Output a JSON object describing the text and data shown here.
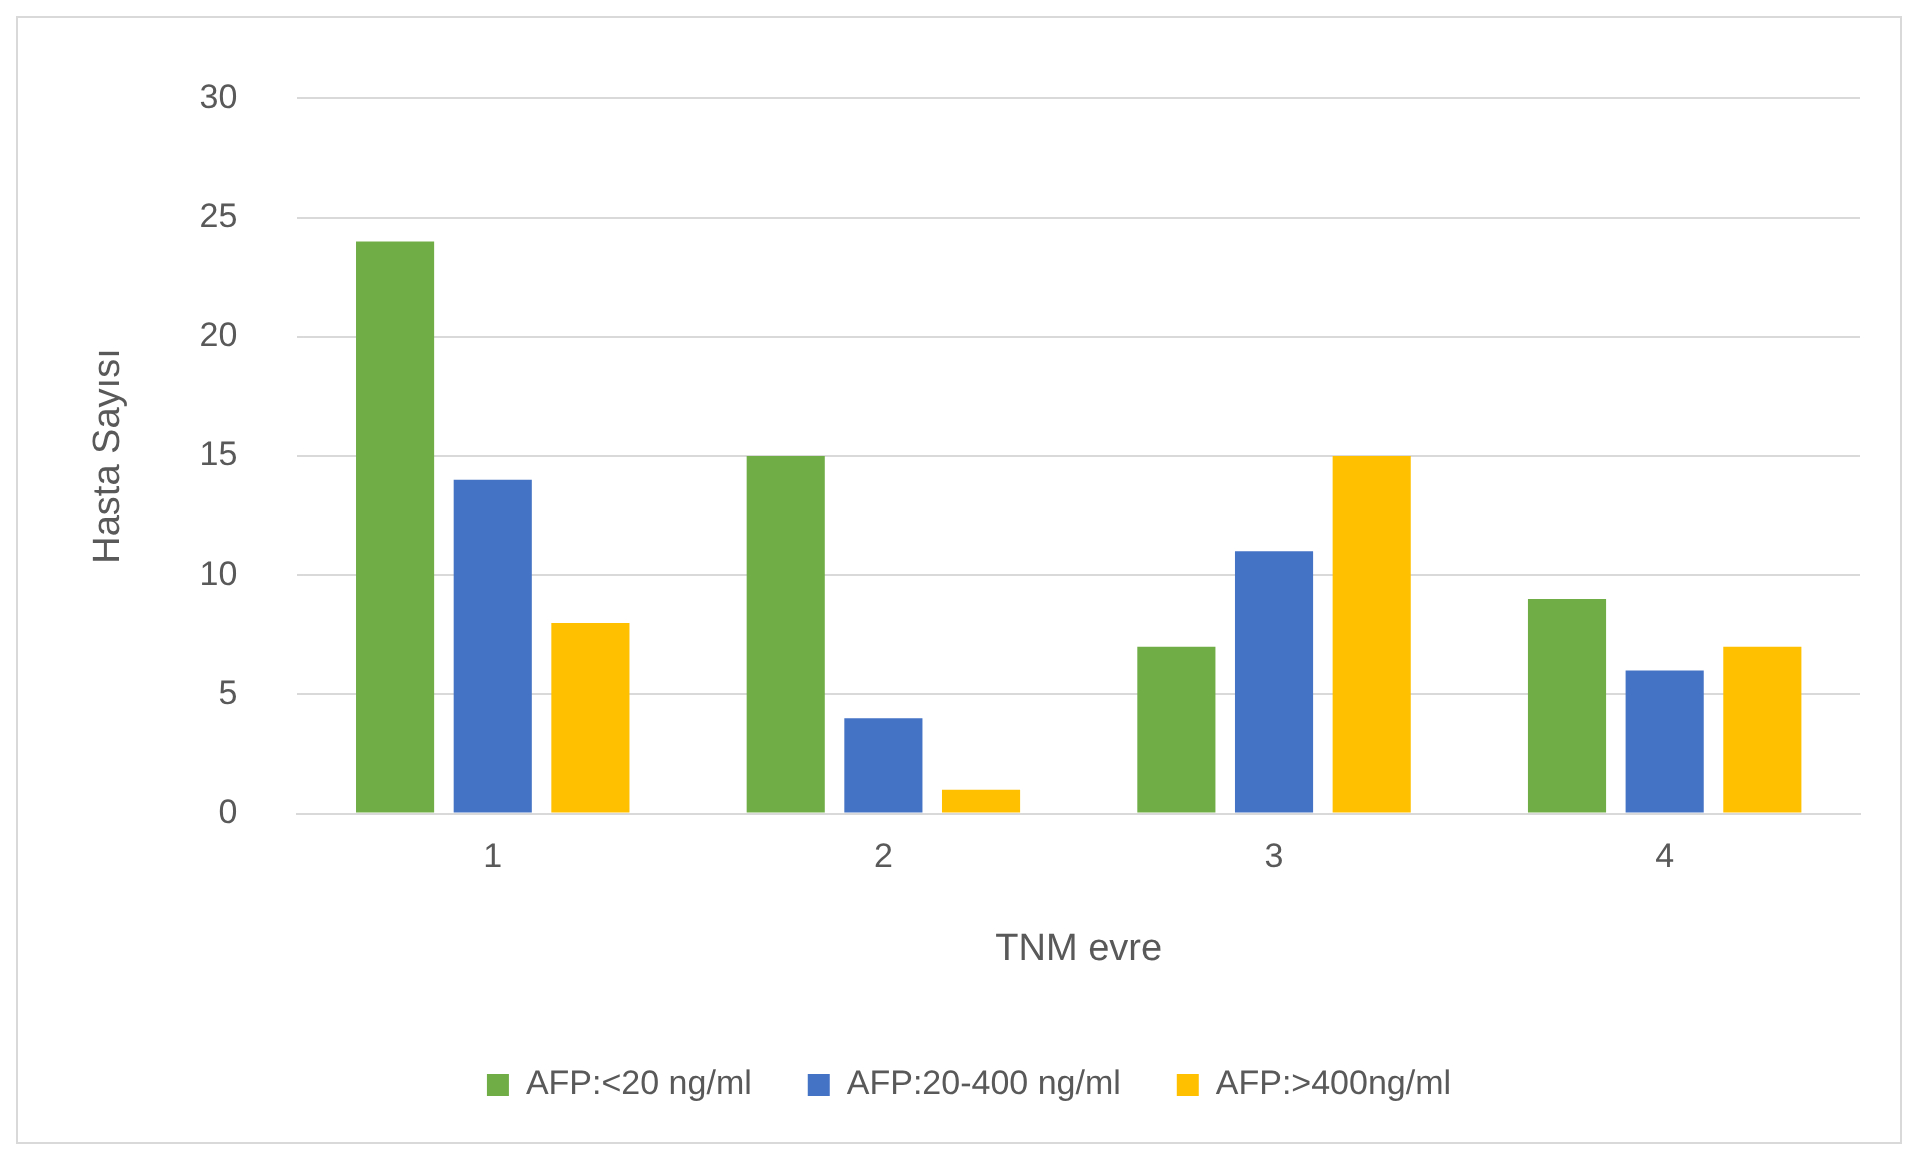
{
  "chart_data": {
    "type": "bar",
    "xlabel": "TNM evre",
    "ylabel": "Hasta Sayısı",
    "categories": [
      "1",
      "2",
      "3",
      "4"
    ],
    "series": [
      {
        "name": "AFP:<20 ng/ml",
        "color": "#70ad47",
        "values": [
          24,
          15,
          7,
          9
        ]
      },
      {
        "name": "AFP:20-400 ng/ml",
        "color": "#4472c4",
        "values": [
          14,
          4,
          11,
          6
        ]
      },
      {
        "name": "AFP:>400ng/ml",
        "color": "#ffc000",
        "values": [
          8,
          1,
          15,
          7
        ]
      }
    ],
    "ylim": [
      0,
      30
    ],
    "yticks": [
      0,
      5,
      10,
      15,
      20,
      25,
      30
    ],
    "grid": "y",
    "legend": "bottom"
  }
}
